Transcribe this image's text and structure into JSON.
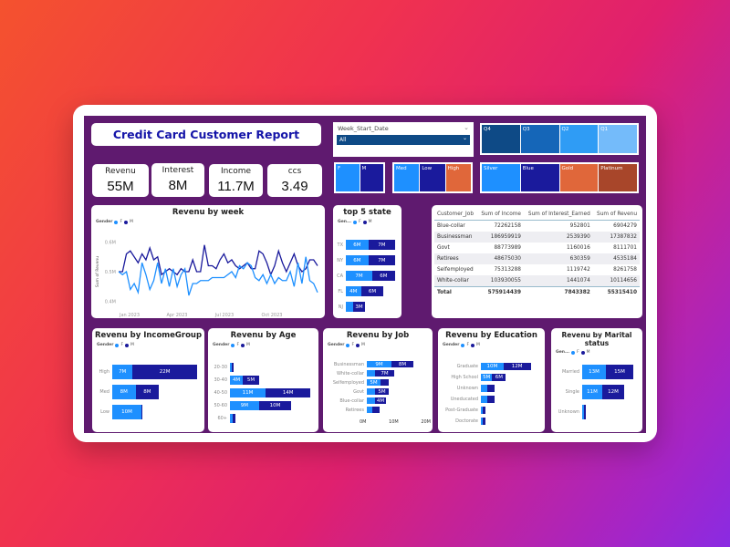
{
  "colors": {
    "female": "#1e90ff",
    "male": "#1a1a9c"
  },
  "title": "Credit Card Customer Report",
  "kpis": [
    {
      "label": "Revenu",
      "value": "55M"
    },
    {
      "label": "Interest",
      "value": "8M"
    },
    {
      "label": "Income",
      "value": "11.7M"
    },
    {
      "label": "ccs",
      "value": "3.49"
    }
  ],
  "slicer": {
    "label": "Week_Start_Date",
    "value": "All"
  },
  "quarters": [
    {
      "label": "Q4",
      "color": "#0e4a86"
    },
    {
      "label": "Q3",
      "color": "#1566b8"
    },
    {
      "label": "Q2",
      "color": "#2f9cf5"
    },
    {
      "label": "Q1",
      "color": "#74bbfa"
    }
  ],
  "gender_tiles": [
    {
      "label": "F",
      "color": "#1e90ff"
    },
    {
      "label": "M",
      "color": "#1a1a9c"
    }
  ],
  "income_tiles": [
    {
      "label": "Med",
      "color": "#1e90ff"
    },
    {
      "label": "Low",
      "color": "#1a1a9c"
    },
    {
      "label": "High",
      "color": "#e0673a"
    }
  ],
  "card_tiles": [
    {
      "label": "Silver",
      "color": "#1e90ff"
    },
    {
      "label": "Blue",
      "color": "#1a1a9c"
    },
    {
      "label": "Gold",
      "color": "#e0673a"
    },
    {
      "label": "Platinum",
      "color": "#a8462a"
    }
  ],
  "legend": {
    "title": "Gender",
    "short_title": "Gen...",
    "f": "F",
    "m": "M"
  },
  "chart_data": [
    {
      "type": "line",
      "title": "Revenu by week",
      "ylabel": "Sum of Revenu",
      "yticks": [
        "0.6M",
        "0.5M",
        "0.4M"
      ],
      "ylim": [
        0.38,
        0.62
      ],
      "xticks": [
        "Jan 2023",
        "Apr 2023",
        "Jul 2023",
        "Oct 2023"
      ],
      "series": [
        {
          "name": "M",
          "values": [
            0.5,
            0.5,
            0.56,
            0.57,
            0.55,
            0.53,
            0.56,
            0.54,
            0.58,
            0.54,
            0.55,
            0.49,
            0.5,
            0.51,
            0.5,
            0.49,
            0.51,
            0.5,
            0.5,
            0.54,
            0.5,
            0.5,
            0.59,
            0.52,
            0.52,
            0.51,
            0.54,
            0.56,
            0.53,
            0.54,
            0.52,
            0.51,
            0.52,
            0.53,
            0.51,
            0.51,
            0.57,
            0.56,
            0.53,
            0.49,
            0.52,
            0.57,
            0.53,
            0.5,
            0.53,
            0.56,
            0.52,
            0.5,
            0.51,
            0.54,
            0.54,
            0.52
          ]
        },
        {
          "name": "F",
          "values": [
            0.5,
            0.49,
            0.5,
            0.44,
            0.46,
            0.43,
            0.53,
            0.49,
            0.44,
            0.47,
            0.53,
            0.46,
            0.51,
            0.45,
            0.51,
            0.45,
            0.49,
            0.51,
            0.42,
            0.46,
            0.46,
            0.47,
            0.47,
            0.47,
            0.48,
            0.48,
            0.48,
            0.48,
            0.49,
            0.5,
            0.48,
            0.52,
            0.51,
            0.53,
            0.52,
            0.48,
            0.47,
            0.49,
            0.46,
            0.49,
            0.46,
            0.48,
            0.47,
            0.47,
            0.5,
            0.45,
            0.53,
            0.46,
            0.55,
            0.47,
            0.46,
            0.43
          ]
        }
      ]
    },
    {
      "type": "bar",
      "title": "top 5 state",
      "stacked": true,
      "categories": [
        "TX",
        "NY",
        "CA",
        "FL",
        "NJ"
      ],
      "series": [
        {
          "name": "F",
          "values": [
            6,
            6,
            7,
            4,
            2
          ],
          "labels": [
            "6M",
            "6M",
            "7M",
            "4M",
            ""
          ]
        },
        {
          "name": "M",
          "values": [
            7,
            7,
            6,
            6,
            3
          ],
          "labels": [
            "7M",
            "7M",
            "6M",
            "6M",
            "3M"
          ]
        }
      ],
      "xmax": 14
    },
    {
      "type": "bar",
      "title": "Revenu by IncomeGroup",
      "stacked": true,
      "categories": [
        "High",
        "Med",
        "Low"
      ],
      "series": [
        {
          "name": "F",
          "values": [
            7,
            8,
            10
          ],
          "labels": [
            "7M",
            "8M",
            "10M"
          ]
        },
        {
          "name": "M",
          "values": [
            22,
            8,
            0.3
          ],
          "labels": [
            "22M",
            "8M",
            ""
          ]
        }
      ],
      "xmax": 30
    },
    {
      "type": "bar",
      "title": "Revenu by Age",
      "stacked": true,
      "categories": [
        "20-30",
        "30-40",
        "40-50",
        "50-60",
        "60+"
      ],
      "series": [
        {
          "name": "F",
          "values": [
            0.5,
            4,
            11,
            9,
            0.8
          ],
          "labels": [
            "",
            "4M",
            "11M",
            "9M",
            ""
          ]
        },
        {
          "name": "M",
          "values": [
            0.5,
            5,
            14,
            10,
            0.8
          ],
          "labels": [
            "",
            "5M",
            "14M",
            "10M",
            ""
          ]
        }
      ],
      "xmax": 26
    },
    {
      "type": "bar",
      "title": "Revenu by Job",
      "stacked": true,
      "categories": [
        "Businessman",
        "White-collar",
        "Selfemployed",
        "Govt",
        "Blue-collar",
        "Retirees"
      ],
      "series": [
        {
          "name": "F",
          "values": [
            9,
            3,
            5,
            3,
            3,
            2
          ],
          "labels": [
            "9M",
            "",
            "5M",
            "",
            "",
            ""
          ]
        },
        {
          "name": "M",
          "values": [
            8,
            7,
            3,
            5,
            4,
            2.5
          ],
          "labels": [
            "8M",
            "7M",
            "",
            "5M",
            "4M",
            ""
          ]
        }
      ],
      "xmax": 20,
      "xticks": [
        "0M",
        "10M",
        "20M"
      ]
    },
    {
      "type": "bar",
      "title": "Revenu by Education",
      "stacked": true,
      "categories": [
        "Graduate",
        "High School",
        "Unknown",
        "Uneducated",
        "Post-Graduate",
        "Doctorate"
      ],
      "series": [
        {
          "name": "F",
          "values": [
            10,
            5,
            3,
            3,
            1,
            1
          ],
          "labels": [
            "10M",
            "5M",
            "",
            "",
            "",
            ""
          ]
        },
        {
          "name": "M",
          "values": [
            12,
            6,
            3,
            3,
            1,
            1
          ],
          "labels": [
            "12M",
            "6M",
            "",
            "",
            "",
            ""
          ]
        }
      ],
      "xmax": 25
    },
    {
      "type": "bar",
      "title": "Revenu by Marital status",
      "stacked": true,
      "categories": [
        "Married",
        "Single",
        "Unknown"
      ],
      "series": [
        {
          "name": "F",
          "values": [
            13,
            11,
            1
          ],
          "labels": [
            "13M",
            "11M",
            ""
          ]
        },
        {
          "name": "M",
          "values": [
            15,
            12,
            1
          ],
          "labels": [
            "15M",
            "12M",
            ""
          ]
        }
      ],
      "xmax": 30
    }
  ],
  "table": {
    "headers": [
      "Customer_Job",
      "Sum of Income",
      "Sum of Interest_Earned",
      "Sum of Revenu"
    ],
    "rows": [
      [
        "Blue-collar",
        "72262158",
        "952801",
        "6904279"
      ],
      [
        "Businessman",
        "186959919",
        "2539390",
        "17387832"
      ],
      [
        "Govt",
        "88773989",
        "1160016",
        "8111701"
      ],
      [
        "Retirees",
        "48675030",
        "630359",
        "4535184"
      ],
      [
        "Selfemployed",
        "75313288",
        "1119742",
        "8261758"
      ],
      [
        "White-collar",
        "103930055",
        "1441074",
        "10114656"
      ]
    ],
    "total": [
      "Total",
      "575914439",
      "7843382",
      "55315410"
    ]
  }
}
